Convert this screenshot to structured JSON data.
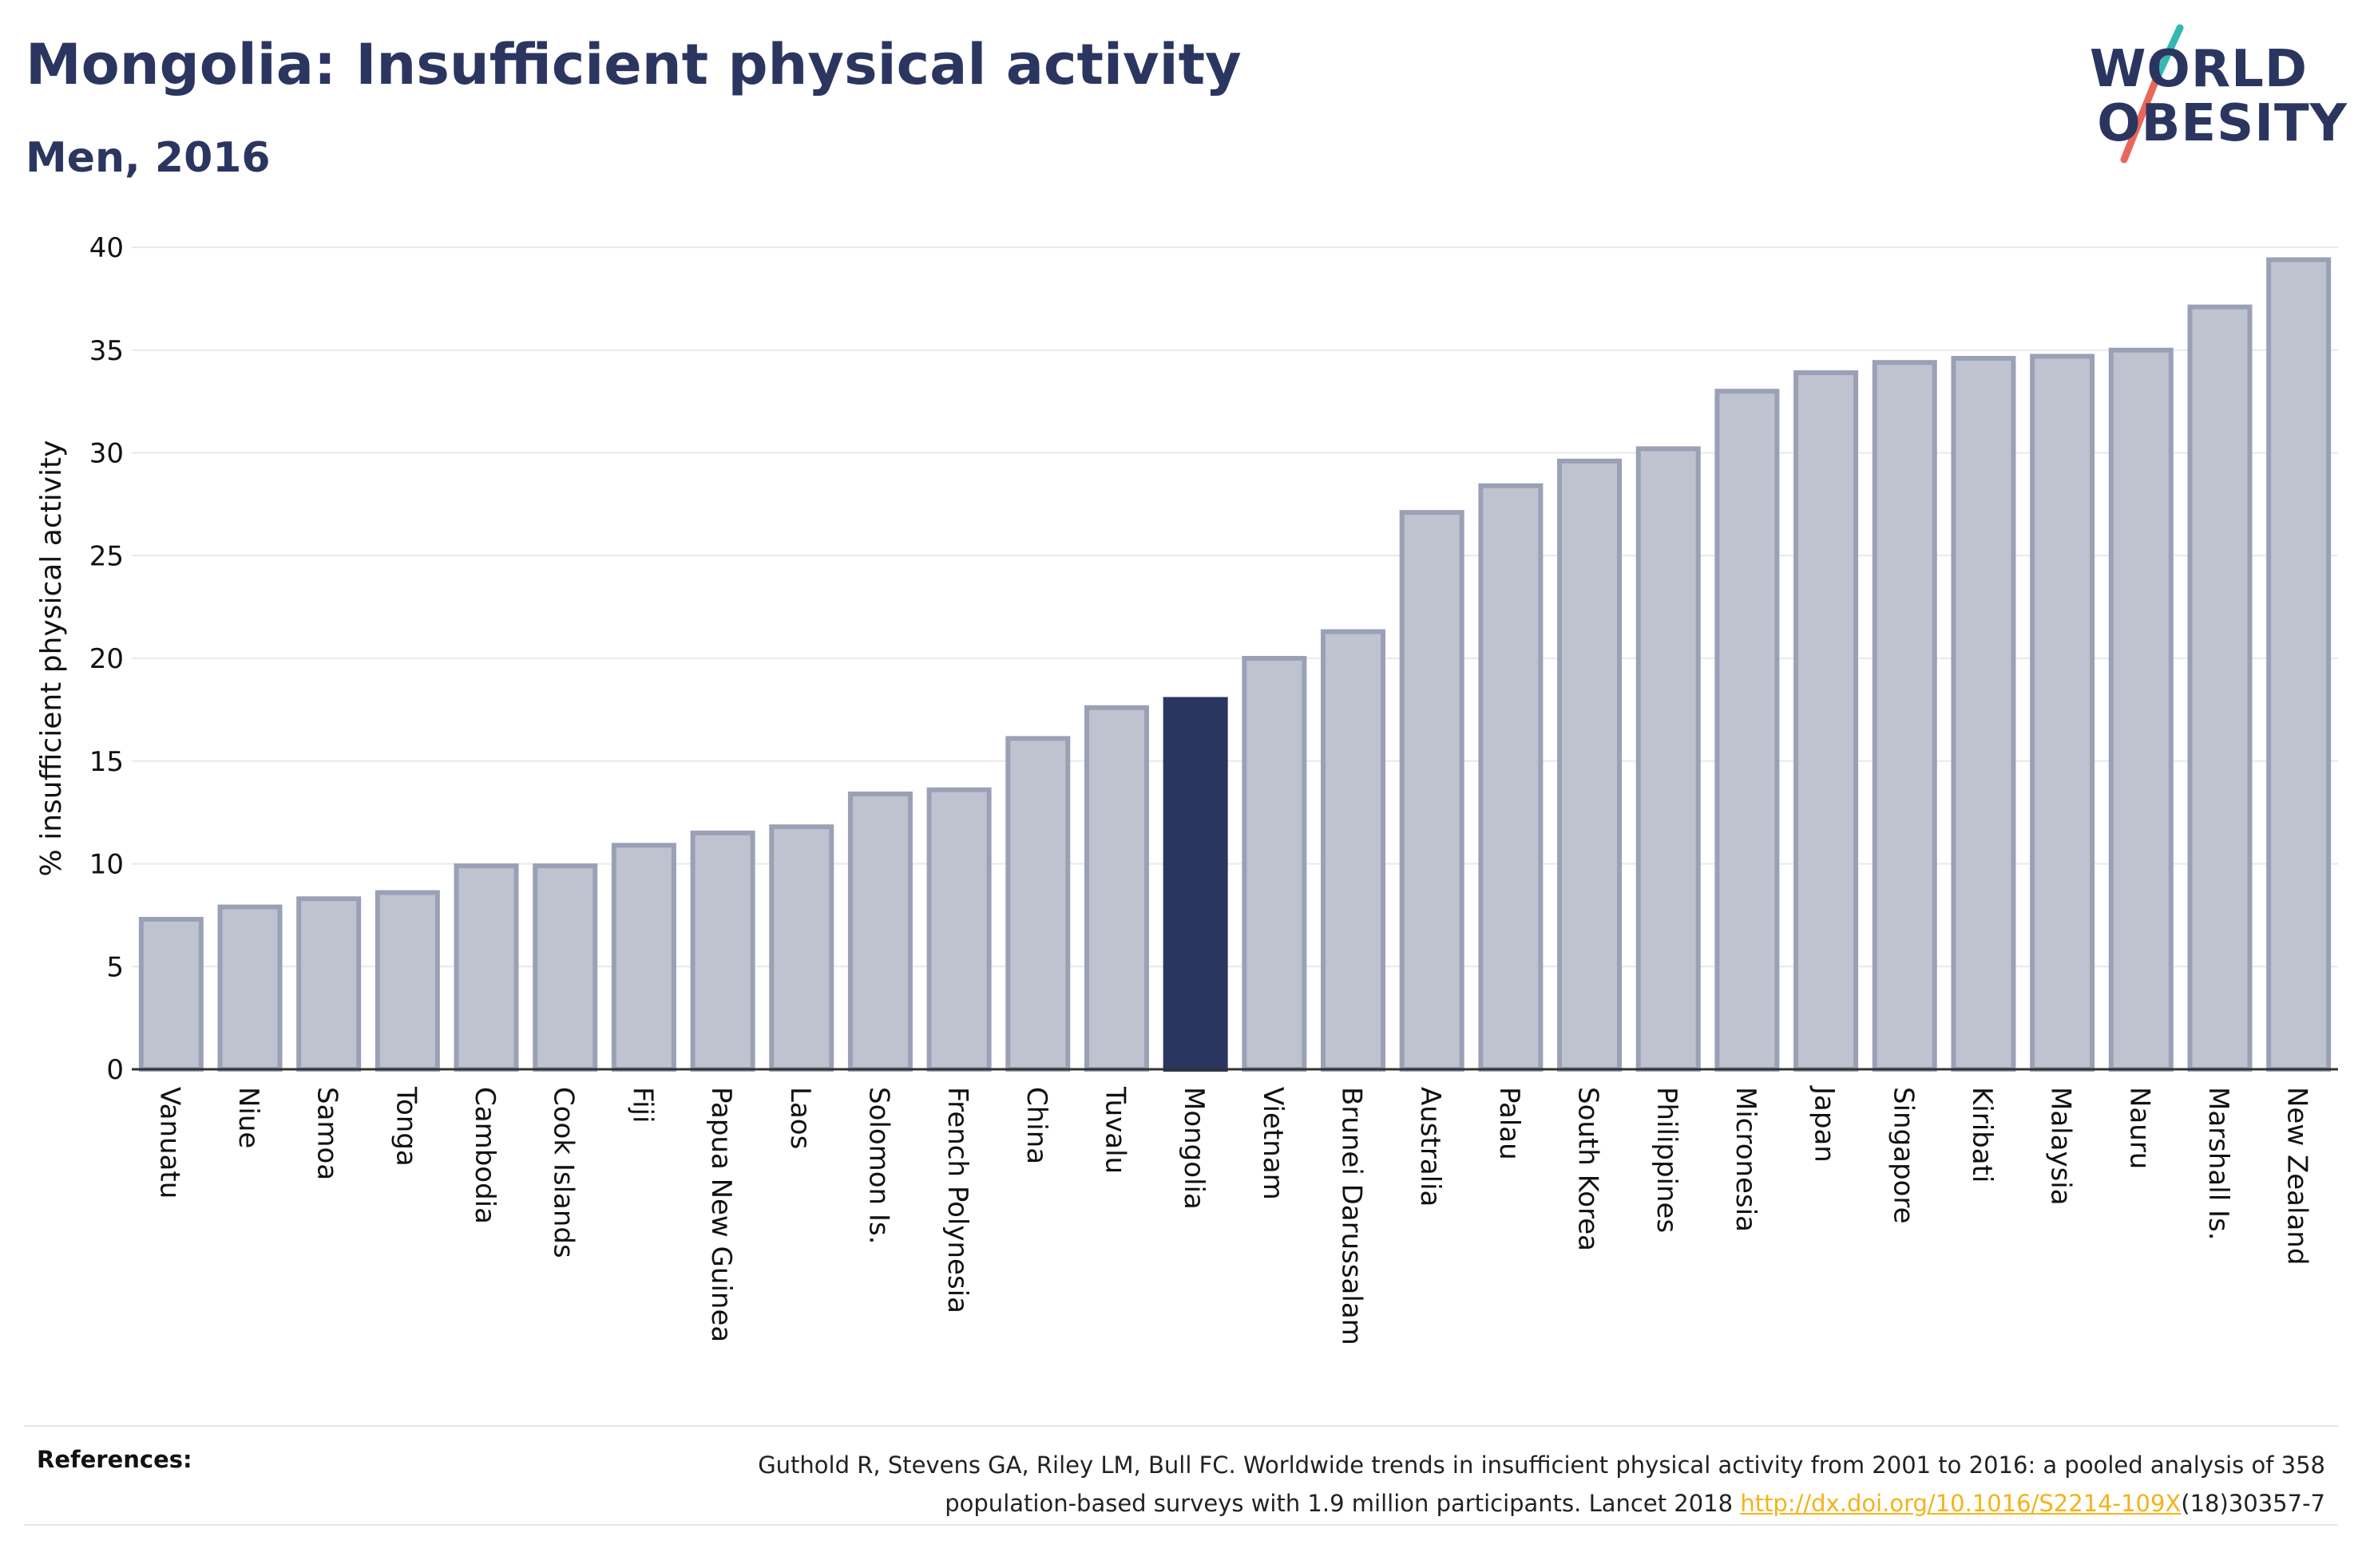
{
  "header": {
    "title": "Mongolia: Insufficient physical activity",
    "subtitle": "Men, 2016"
  },
  "logo": {
    "line1": "WORLD",
    "line2": "OBESITY",
    "colors": {
      "text": "#2b3660",
      "slash_top": "#35b8b0",
      "slash_bottom": "#e8665a"
    }
  },
  "colors": {
    "bar_fill": "#bfc3d0",
    "bar_stroke": "#9aa0b6",
    "highlight": "#2b3660",
    "grid": "#e9e9ec",
    "axis_text": "#111111"
  },
  "chart_data": {
    "type": "bar",
    "ylabel": "% insufficient physical activity",
    "xlabel": "",
    "ylim": [
      0,
      40
    ],
    "yticks": [
      0,
      5,
      10,
      15,
      20,
      25,
      30,
      35,
      40
    ],
    "grid": true,
    "highlight": "Mongolia",
    "categories": [
      "Vanuatu",
      "Niue",
      "Samoa",
      "Tonga",
      "Cambodia",
      "Cook Islands",
      "Fiji",
      "Papua New Guinea",
      "Laos",
      "Solomon Is.",
      "French Polynesia",
      "China",
      "Tuvalu",
      "Mongolia",
      "Vietnam",
      "Brunei Darussalam",
      "Australia",
      "Palau",
      "South Korea",
      "Philippines",
      "Micronesia",
      "Japan",
      "Singapore",
      "Kiribati",
      "Malaysia",
      "Nauru",
      "Marshall Is.",
      "New Zealand"
    ],
    "values": [
      7.3,
      7.9,
      8.3,
      8.6,
      9.9,
      9.9,
      10.9,
      11.5,
      11.8,
      13.4,
      13.6,
      16.1,
      17.6,
      18.0,
      20.0,
      21.3,
      27.1,
      28.4,
      29.6,
      30.2,
      33.0,
      33.9,
      34.4,
      34.6,
      34.7,
      35.0,
      37.1,
      39.4
    ]
  },
  "references": {
    "label": "References:",
    "line1": "Guthold R, Stevens GA, Riley LM, Bull FC. Worldwide trends in insufficient physical activity from 2001 to 2016: a pooled analysis of 358",
    "line2_prefix": "population-based surveys with 1.9 million participants. Lancet 2018 ",
    "link": "http://dx.doi.org/10.1016/S2214-109X",
    "line2_suffix": "(18)30357-7"
  }
}
